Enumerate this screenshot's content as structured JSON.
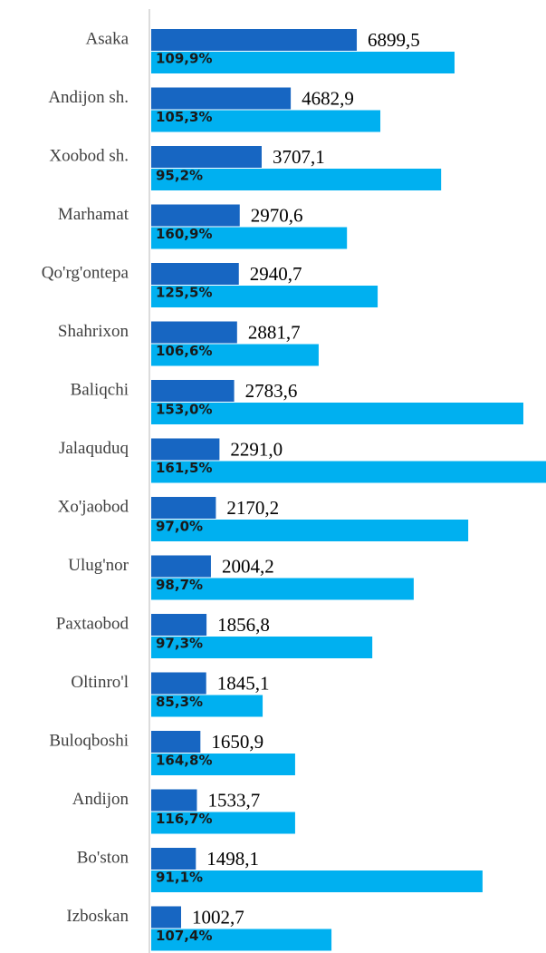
{
  "chart_data": {
    "type": "bar",
    "categories": [
      "Asaka",
      "Andijon sh.",
      "Xoobod sh.",
      "Marhamat",
      "Qo'rg'ontepa",
      "Shahrixon",
      "Baliqchi",
      "Jalaquduq",
      "Xo'jaobod",
      "Ulug'nor",
      "Paxtaobod",
      "Oltinro'l",
      "Buloqboshi",
      "Andijon ",
      "Bo'ston",
      "Izboskan"
    ],
    "series": [
      {
        "color": "#1766c2",
        "values": [
          6899.5,
          4682.9,
          3707.1,
          2970.6,
          2940.7,
          2881.7,
          2783.6,
          2291.0,
          2170.2,
          2004.2,
          1856.8,
          1845.1,
          1650.9,
          1533.7,
          1498.1,
          1002.7
        ],
        "value_labels": [
          "6899,5",
          "4682,9",
          "3707,1",
          "2970,6",
          "2940,7",
          "2881,7",
          "2783,6",
          "2291,0",
          "2170,2",
          "2004,2",
          "1856,8",
          "1845,1",
          "1650,9",
          "1533,7",
          "1498,1",
          "1002,7"
        ]
      },
      {
        "color": "#00b0f0",
        "values": [
          10180,
          7690,
          9730,
          6570,
          7600,
          5620,
          12490,
          13250,
          10640,
          8810,
          7420,
          3740,
          4830,
          4830,
          11120,
          6050
        ],
        "labels": [
          "109,9%",
          "105,3%",
          "95,2%",
          "160,9%",
          "125,5%",
          "106,6%",
          "153,0%",
          "161,5%",
          "97,0%",
          "98,7%",
          "97,3%",
          "85,3%",
          "164,8%",
          "116,7%",
          "91,1%",
          "107,4%"
        ]
      }
    ],
    "xlim": [
      0,
      13250
    ]
  }
}
